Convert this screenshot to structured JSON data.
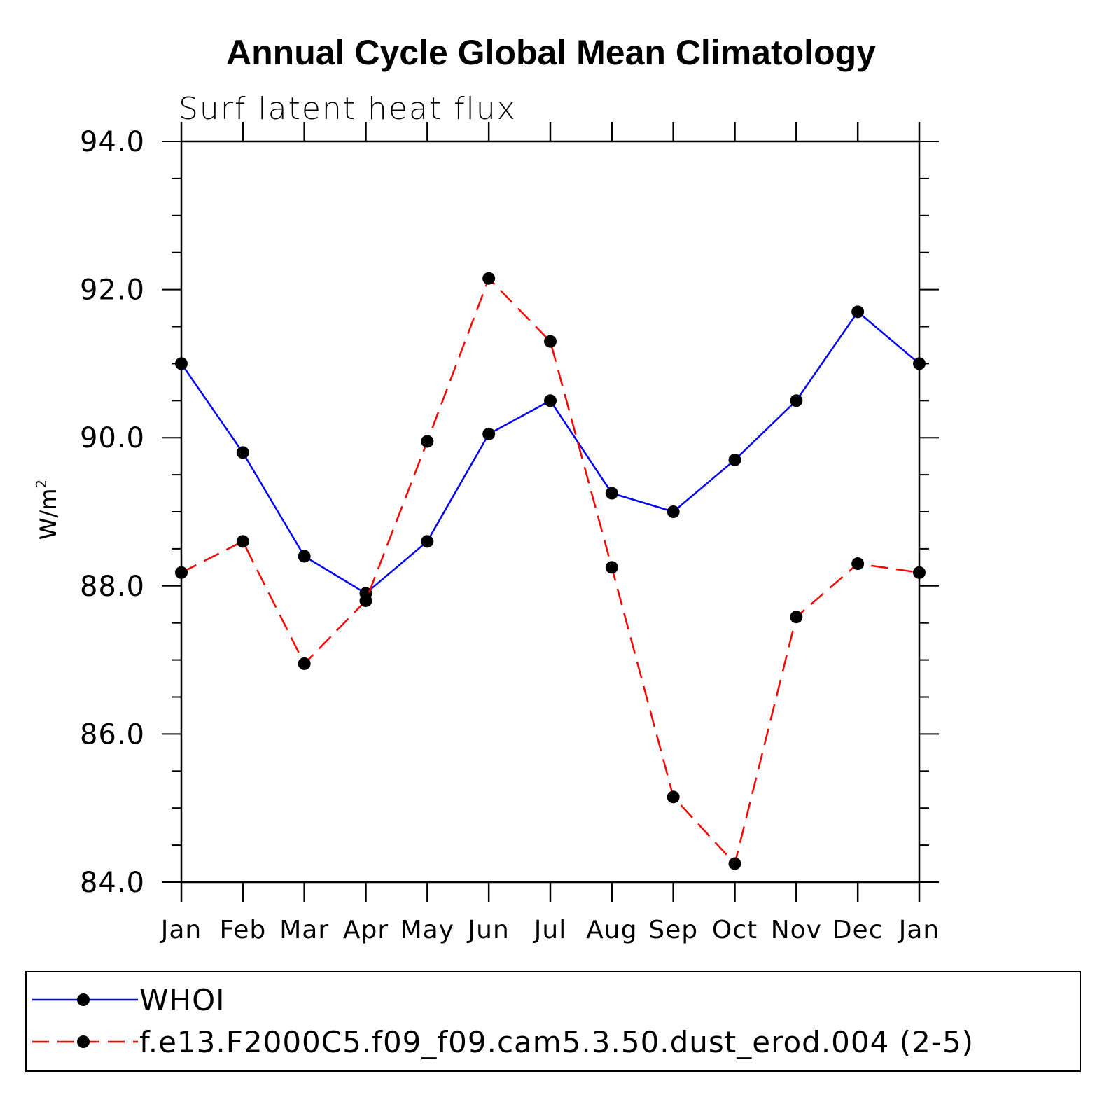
{
  "chart_data": {
    "type": "line",
    "title": "Annual Cycle Global Mean Climatology",
    "subtitle": "Surf latent heat flux",
    "ylabel": "W/m",
    "ylabel_sup": "2",
    "xlabel": "",
    "ylim": [
      84.0,
      94.0
    ],
    "yticks": [
      "84.0",
      "86.0",
      "88.0",
      "90.0",
      "92.0",
      "94.0"
    ],
    "categories": [
      "Jan",
      "Feb",
      "Mar",
      "Apr",
      "May",
      "Jun",
      "Jul",
      "Aug",
      "Sep",
      "Oct",
      "Nov",
      "Dec",
      "Jan"
    ],
    "series": [
      {
        "name": "WHOI",
        "color": "#0000ff",
        "dash": "solid",
        "values": [
          91.0,
          89.8,
          88.4,
          87.9,
          88.6,
          90.05,
          90.5,
          89.25,
          89.0,
          89.7,
          90.5,
          91.7,
          91.0
        ]
      },
      {
        "name": "f.e13.F2000C5.f09_f09.cam5.3.50.dust_erod.004 (2-5)",
        "color": "#ff0000",
        "dash": "dashed",
        "values": [
          88.18,
          88.6,
          86.95,
          87.8,
          89.95,
          92.15,
          91.3,
          88.25,
          85.15,
          84.25,
          87.58,
          88.3,
          88.18
        ]
      }
    ],
    "legend_position": "bottom"
  }
}
